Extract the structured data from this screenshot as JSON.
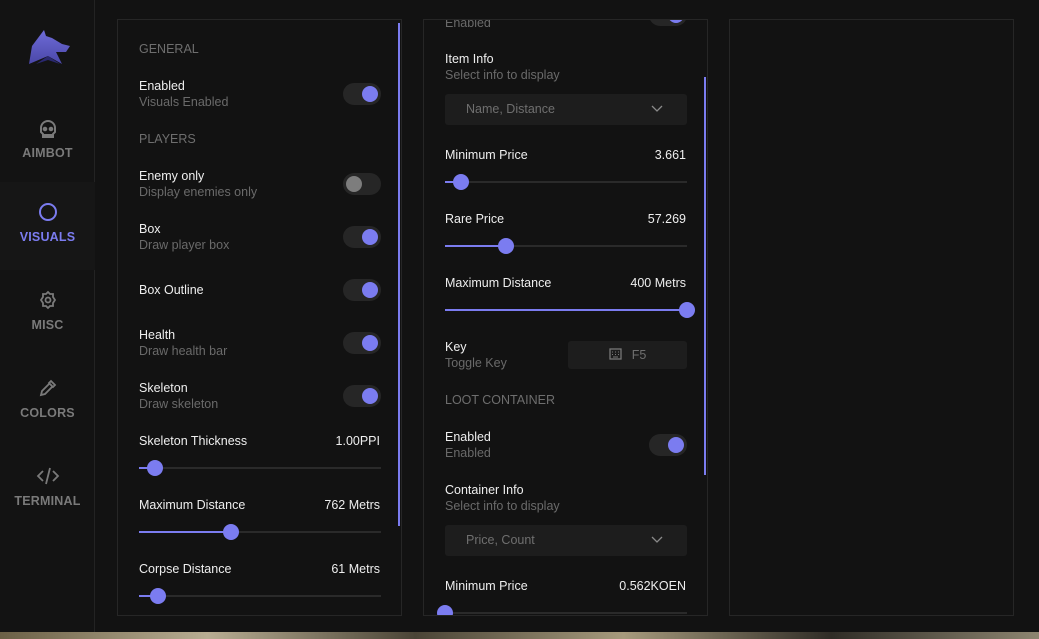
{
  "colors": {
    "accent": "#7b7cf0",
    "background": "#121212",
    "toggle_off_knob": "#7d7d7d"
  },
  "sidebar": {
    "logo": "wolf-logo",
    "items": [
      {
        "label": "AIMBOT",
        "icon": "skull-icon",
        "active": false
      },
      {
        "label": "VISUALS",
        "icon": "moon-icon",
        "active": true
      },
      {
        "label": "MISC",
        "icon": "gear-icon",
        "active": false
      },
      {
        "label": "COLORS",
        "icon": "eyedropper-icon",
        "active": false
      },
      {
        "label": "TERMINAL",
        "icon": "code-icon",
        "active": false
      }
    ]
  },
  "left_panel": {
    "rows": [
      {
        "type": "section",
        "label": "GENERAL"
      },
      {
        "type": "toggle",
        "title": "Enabled",
        "subtitle": "Visuals Enabled",
        "on": true
      },
      {
        "type": "section",
        "label": "PLAYERS"
      },
      {
        "type": "toggle",
        "title": "Enemy only",
        "subtitle": "Display enemies only",
        "on": false
      },
      {
        "type": "toggle",
        "title": "Box",
        "subtitle": "Draw player box",
        "on": true
      },
      {
        "type": "toggle",
        "title": "Box Outline",
        "on": true
      },
      {
        "type": "toggle",
        "title": "Health",
        "subtitle": "Draw health bar",
        "on": true
      },
      {
        "type": "toggle",
        "title": "Skeleton",
        "subtitle": "Draw skeleton",
        "on": true
      },
      {
        "type": "slider",
        "title": "Skeleton Thickness",
        "value": "1.00PPI",
        "fraction": 0.066
      },
      {
        "type": "slider",
        "title": "Maximum Distance",
        "value": "762 Metrs",
        "fraction": 0.38
      },
      {
        "type": "slider",
        "title": "Corpse Distance",
        "value": "61 Metrs",
        "fraction": 0.08
      }
    ]
  },
  "middle_panel": {
    "rows": [
      {
        "type": "toggle",
        "title": "Enabled",
        "subtitle": "Enabled",
        "on": true
      },
      {
        "type": "dropdown",
        "title": "Item Info",
        "subtitle": "Select info to display",
        "value": "Name, Distance"
      },
      {
        "type": "slider",
        "title": "Minimum Price",
        "value": "3.661",
        "fraction": 0.066
      },
      {
        "type": "slider",
        "title": "Rare Price",
        "value": "57.269",
        "fraction": 0.25
      },
      {
        "type": "slider",
        "title": "Maximum Distance",
        "value": "400 Metrs",
        "fraction": 1.0
      },
      {
        "type": "key",
        "title": "Key",
        "subtitle": "Toggle Key",
        "value": "F5"
      },
      {
        "type": "section",
        "label": "LOOT CONTAINER"
      },
      {
        "type": "toggle",
        "title": "Enabled",
        "subtitle": "Enabled",
        "on": true
      },
      {
        "type": "dropdown",
        "title": "Container Info",
        "subtitle": "Select info to display",
        "value": "Price, Count"
      },
      {
        "type": "slider",
        "title": "Minimum Price",
        "value": "0.562KOEN",
        "fraction": 0.0
      }
    ]
  }
}
